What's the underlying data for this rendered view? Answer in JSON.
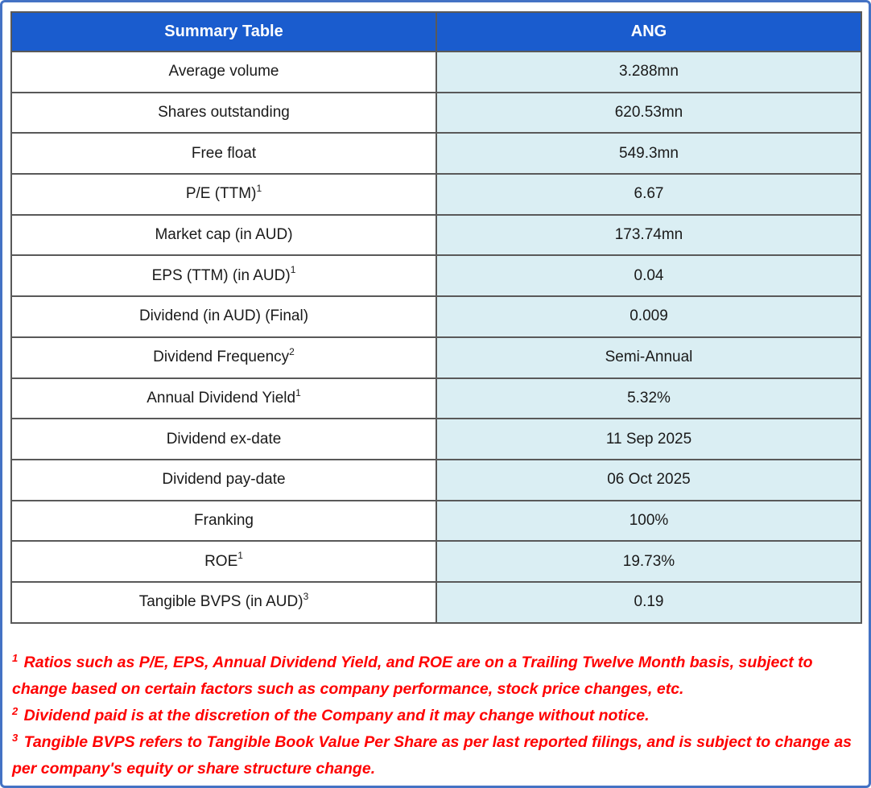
{
  "table": {
    "header": {
      "left": "Summary Table",
      "right": "ANG"
    },
    "rows": [
      {
        "label": "Average volume",
        "sup": "",
        "value": "3.288mn"
      },
      {
        "label": "Shares outstanding",
        "sup": "",
        "value": "620.53mn"
      },
      {
        "label": "Free float",
        "sup": "",
        "value": "549.3mn"
      },
      {
        "label": "P/E (TTM)",
        "sup": "1",
        "value": "6.67"
      },
      {
        "label": "Market cap (in AUD)",
        "sup": "",
        "value": "173.74mn"
      },
      {
        "label": "EPS (TTM) (in AUD)",
        "sup": "1",
        "value": "0.04"
      },
      {
        "label": "Dividend (in AUD) (Final)",
        "sup": "",
        "value": "0.009"
      },
      {
        "label": "Dividend Frequency",
        "sup": "2",
        "value": "Semi-Annual"
      },
      {
        "label": "Annual Dividend Yield",
        "sup": "1",
        "value": "5.32%"
      },
      {
        "label": "Dividend ex-date",
        "sup": "",
        "value": "11 Sep 2025"
      },
      {
        "label": "Dividend pay-date",
        "sup": "",
        "value": "06 Oct 2025"
      },
      {
        "label": "Franking",
        "sup": "",
        "value": "100%"
      },
      {
        "label": "ROE",
        "sup": "1",
        "value": "19.73%"
      },
      {
        "label": "Tangible BVPS (in AUD)",
        "sup": "3",
        "value": "0.19"
      }
    ]
  },
  "footnotes": [
    {
      "sup": "1",
      "text": "Ratios such as P/E, EPS, Annual Dividend Yield, and ROE are on a Trailing Twelve Month basis, subject to change based on certain factors such as company performance, stock price changes, etc."
    },
    {
      "sup": "2",
      "text": "Dividend paid is at the discretion of the Company and it may change without notice."
    },
    {
      "sup": "3",
      "text": "Tangible BVPS refers to Tangible Book Value Per Share as per last reported filings, and is subject to change as per company's equity or share structure change."
    }
  ],
  "colors": {
    "header_bg": "#1a5cce",
    "header_text": "#ffffff",
    "value_bg": "#daeef3",
    "cell_border": "#595959",
    "outer_border": "#4472c4",
    "footnote_text": "#fe0000",
    "body_text": "#1a1a1a"
  }
}
